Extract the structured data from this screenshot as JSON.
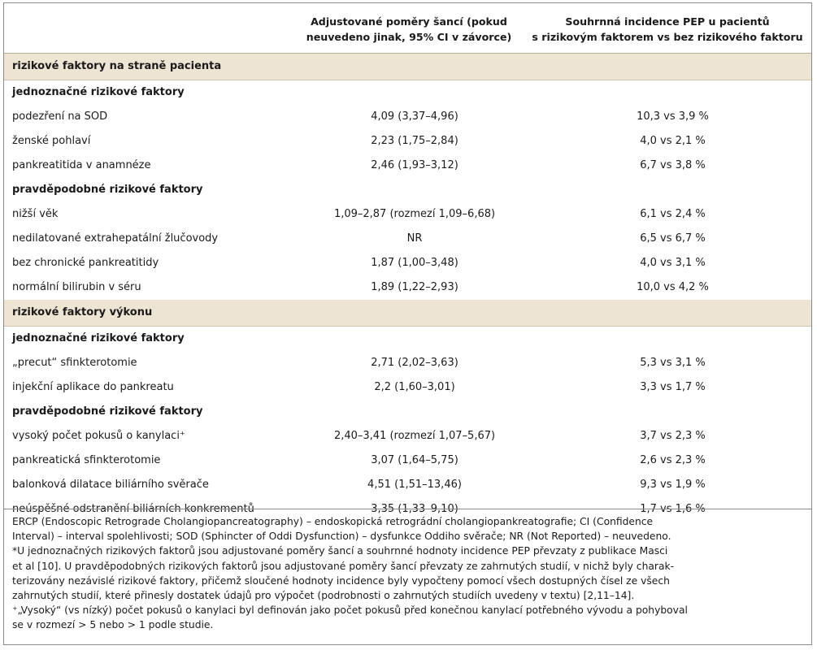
{
  "header": {
    "col2_line1": "Adjustované poměry šancí (pokud",
    "col2_line2": "neuvedeno jinak, 95% CI v závorce)",
    "col3_line1": "Souhrnná incidence PEP u pacientů",
    "col3_line2": "s rizikovým faktorem vs bez rizikového faktoru"
  },
  "sections": [
    {
      "title": "rizikové faktory na straně pacienta",
      "groups": [
        {
          "title": "jednoznačné rizikové faktory",
          "rows": [
            {
              "label": "podezření na SOD",
              "or": "4,09 (3,37–4,96)",
              "incidence": "10,3 vs 3,9 %"
            },
            {
              "label": "ženské pohlaví",
              "or": "2,23 (1,75–2,84)",
              "incidence": "4,0 vs 2,1 %"
            },
            {
              "label": "pankreatitida v anamnéze",
              "or": "2,46 (1,93–3,12)",
              "incidence": "6,7 vs 3,8 %"
            }
          ]
        },
        {
          "title": "pravděpodobné rizikové faktory",
          "rows": [
            {
              "label": "nižší věk",
              "or": "1,09–2,87 (rozmezí 1,09–6,68)",
              "incidence": "6,1 vs 2,4 %"
            },
            {
              "label": "nedilatované extrahepatální žlučovody",
              "or": "NR",
              "incidence": "6,5 vs 6,7 %"
            },
            {
              "label": "bez chronické pankreatitidy",
              "or": "1,87 (1,00–3,48)",
              "incidence": "4,0 vs 3,1 %"
            },
            {
              "label": "normální bilirubin v séru",
              "or": "1,89 (1,22–2,93)",
              "incidence": "10,0 vs 4,2 %"
            }
          ]
        }
      ]
    },
    {
      "title": "rizikové faktory výkonu",
      "groups": [
        {
          "title": "jednoznačné rizikové faktory",
          "rows": [
            {
              "label": "„precut“ sfinkterotomie",
              "or": "2,71 (2,02–3,63)",
              "incidence": "5,3 vs 3,1 %"
            },
            {
              "label": "injekční aplikace do pankreatu",
              "or": "2,2 (1,60–3,01)",
              "incidence": "3,3 vs 1,7 %"
            }
          ]
        },
        {
          "title": "pravděpodobné rizikové faktory",
          "rows": [
            {
              "label": "vysoký počet pokusů o kanylaci⁺",
              "or": "2,40–3,41 (rozmezí 1,07–5,67)",
              "incidence": "3,7 vs 2,3 %"
            },
            {
              "label": "pankreatická sfinkterotomie",
              "or": "3,07 (1,64–5,75)",
              "incidence": "2,6 vs 2,3 %"
            },
            {
              "label": "balonková dilatace biliárního svěrače",
              "or": "4,51 (1,51–13,46)",
              "incidence": "9,3 vs 1,9 %"
            },
            {
              "label": "neúspěšné odstranění biliárních konkrementů",
              "or": "3,35 (1,33–9,10)",
              "incidence": "1,7 vs 1,6 %"
            }
          ]
        }
      ]
    }
  ],
  "footnotes": {
    "line1": "ERCP (Endoscopic Retrograde Cholangiopancreatography) – endoskopická retrográdní cholangiopankreatografie; CI (Confidence",
    "line2": "Interval) – interval spolehlivosti; SOD (Sphincter of Oddi Dysfunction) – dysfunkce Oddiho svěrače; NR (Not Reported) – neuvedeno.",
    "line3": "*U jednoznačných rizikových faktorů jsou adjustované poměry šancí a souhrnné hodnoty incidence PEP převzaty z publikace Masci",
    "line4": "et al [10]. U pravděpodobných rizikových faktorů jsou adjustované poměry šancí převzaty ze zahrnutých studií, v nichž byly charak-",
    "line5": "terizovány nezávislé rizikové faktory, přičemž sloučené hodnoty incidence byly vypočteny pomocí všech dostupných čísel ze všech",
    "line6": "zahrnutých studií, které přinesly dostatek údajů pro výpočet (podrobnosti o zahrnutých studiích uvedeny v textu) [2,11–14].",
    "line7": "⁺„Vysoký“ (vs nízký) počet pokusů o kanylaci byl definován jako počet pokusů před konečnou kanylací potřebného vývodu a pohyboval",
    "line8": "se v rozmezí > 5 nebo > 1 podle studie."
  },
  "colors": {
    "section_background": "#ede4d3",
    "border": "#8a8a8a"
  }
}
